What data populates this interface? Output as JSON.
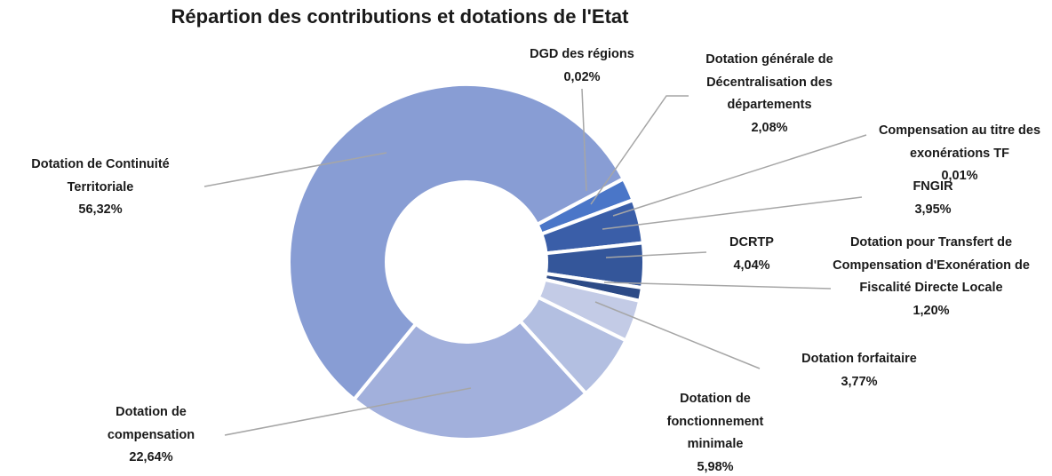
{
  "chart_data": {
    "type": "donut",
    "title": "Répartion des contributions et dotations de l'Etat",
    "categories": [
      "DGD des régions",
      "Dotation générale de Décentralisation des départements",
      "Compensation au titre des exonérations TF",
      "FNGIR",
      "DCRTP",
      "Dotation pour Transfert de Compensation d'Exonération de Fiscalité Directe Locale",
      "Dotation forfaitaire",
      "Dotation de fonctionnement minimale",
      "Dotation de compensation",
      "Dotation de Continuité Territoriale"
    ],
    "values": [
      0.02,
      2.08,
      0.01,
      3.95,
      4.04,
      1.2,
      3.77,
      5.98,
      22.64,
      56.32
    ],
    "value_labels": [
      "0,02%",
      "2,08%",
      "0,01%",
      "3,95%",
      "4,04%",
      "1,20%",
      "3,77%",
      "5,98%",
      "22,64%",
      "56,32%"
    ],
    "colors": [
      "#5b83cf",
      "#4a76c8",
      "#3f67b4",
      "#3a5ea8",
      "#34569a",
      "#2c4a86",
      "#c3cbe6",
      "#b3bfe1",
      "#a2b0dc",
      "#889dd4"
    ]
  }
}
